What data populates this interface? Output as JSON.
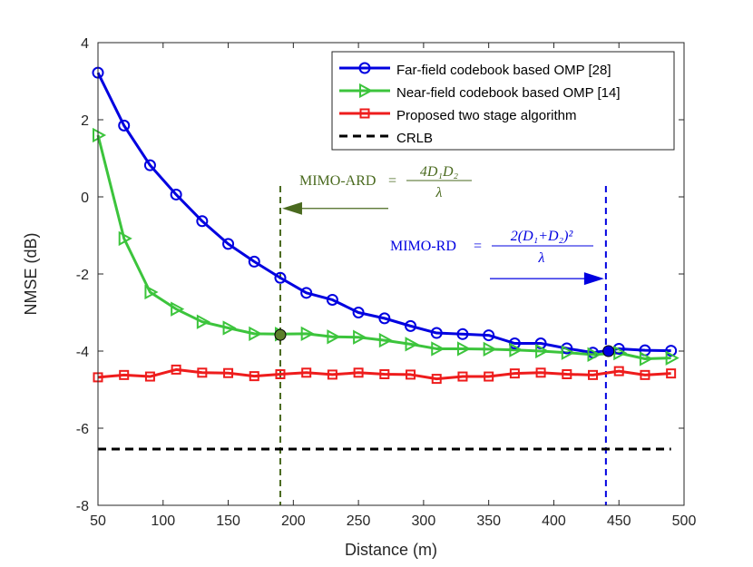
{
  "chart_data": {
    "type": "line",
    "xlabel": "Distance (m)",
    "ylabel": "NMSE (dB)",
    "xlim": [
      50,
      500
    ],
    "ylim": [
      -8,
      4
    ],
    "xticks": [
      50,
      100,
      150,
      200,
      250,
      300,
      350,
      400,
      450,
      500
    ],
    "yticks": [
      -8,
      -6,
      -4,
      -2,
      0,
      2,
      4
    ],
    "xtick_labels": [
      "50",
      "100",
      "150",
      "200",
      "250",
      "300",
      "350",
      "400",
      "450",
      "500"
    ],
    "ytick_labels": [
      "-8",
      "-6",
      "-4",
      "-2",
      "0",
      "2",
      "4"
    ],
    "grid": false,
    "legend_position": "top-right",
    "x": [
      50,
      70,
      90,
      110,
      130,
      150,
      170,
      190,
      210,
      230,
      250,
      270,
      290,
      310,
      330,
      350,
      370,
      390,
      410,
      430,
      450,
      470,
      490
    ],
    "series": [
      {
        "name": "Far-field codebook based OMP [28]",
        "color": "#0000e0",
        "marker": "circle",
        "values": [
          3.22,
          1.85,
          0.82,
          0.06,
          -0.63,
          -1.22,
          -1.68,
          -2.1,
          -2.49,
          -2.67,
          -3.0,
          -3.15,
          -3.35,
          -3.53,
          -3.56,
          -3.59,
          -3.8,
          -3.8,
          -3.93,
          -4.04,
          -3.94,
          -3.98,
          -3.99
        ]
      },
      {
        "name": "Near-field codebook based OMP [14]",
        "color": "#3cc43c",
        "marker": "triangle-right",
        "values": [
          1.6,
          -1.08,
          -2.47,
          -2.91,
          -3.24,
          -3.4,
          -3.55,
          -3.56,
          -3.55,
          -3.63,
          -3.64,
          -3.72,
          -3.82,
          -3.94,
          -3.94,
          -3.95,
          -3.97,
          -4.0,
          -4.04,
          -4.09,
          -4.05,
          -4.2,
          -4.18
        ]
      },
      {
        "name": "Proposed two stage algorithm",
        "color": "#ee1c1c",
        "marker": "square",
        "values": [
          -4.68,
          -4.62,
          -4.66,
          -4.48,
          -4.56,
          -4.57,
          -4.65,
          -4.6,
          -4.56,
          -4.61,
          -4.56,
          -4.6,
          -4.61,
          -4.72,
          -4.66,
          -4.66,
          -4.58,
          -4.56,
          -4.6,
          -4.62,
          -4.52,
          -4.62,
          -4.58
        ]
      },
      {
        "name": "CRLB",
        "color": "#000000",
        "marker": "none",
        "dashed": true,
        "x": [
          50,
          490
        ],
        "values": [
          -6.54,
          -6.54
        ]
      }
    ],
    "annotations": [
      {
        "id": "ard",
        "label": "MIMO-ARD",
        "equals": "=",
        "numerator": "4D₁D₂",
        "denominator": "λ",
        "color": "#4a6a1f",
        "line_x": 190,
        "point": {
          "x": 190,
          "y": -3.58
        },
        "arrow_direction": "left",
        "arrow_y": -0.3
      },
      {
        "id": "rd",
        "label": "MIMO-RD",
        "equals": "=",
        "numerator": "2(D₁+D₂)²",
        "denominator": "λ",
        "color": "#0000e0",
        "line_x": 440,
        "point": {
          "x": 442,
          "y": -4.0
        },
        "arrow_direction": "right",
        "arrow_y": -2.12
      }
    ]
  }
}
